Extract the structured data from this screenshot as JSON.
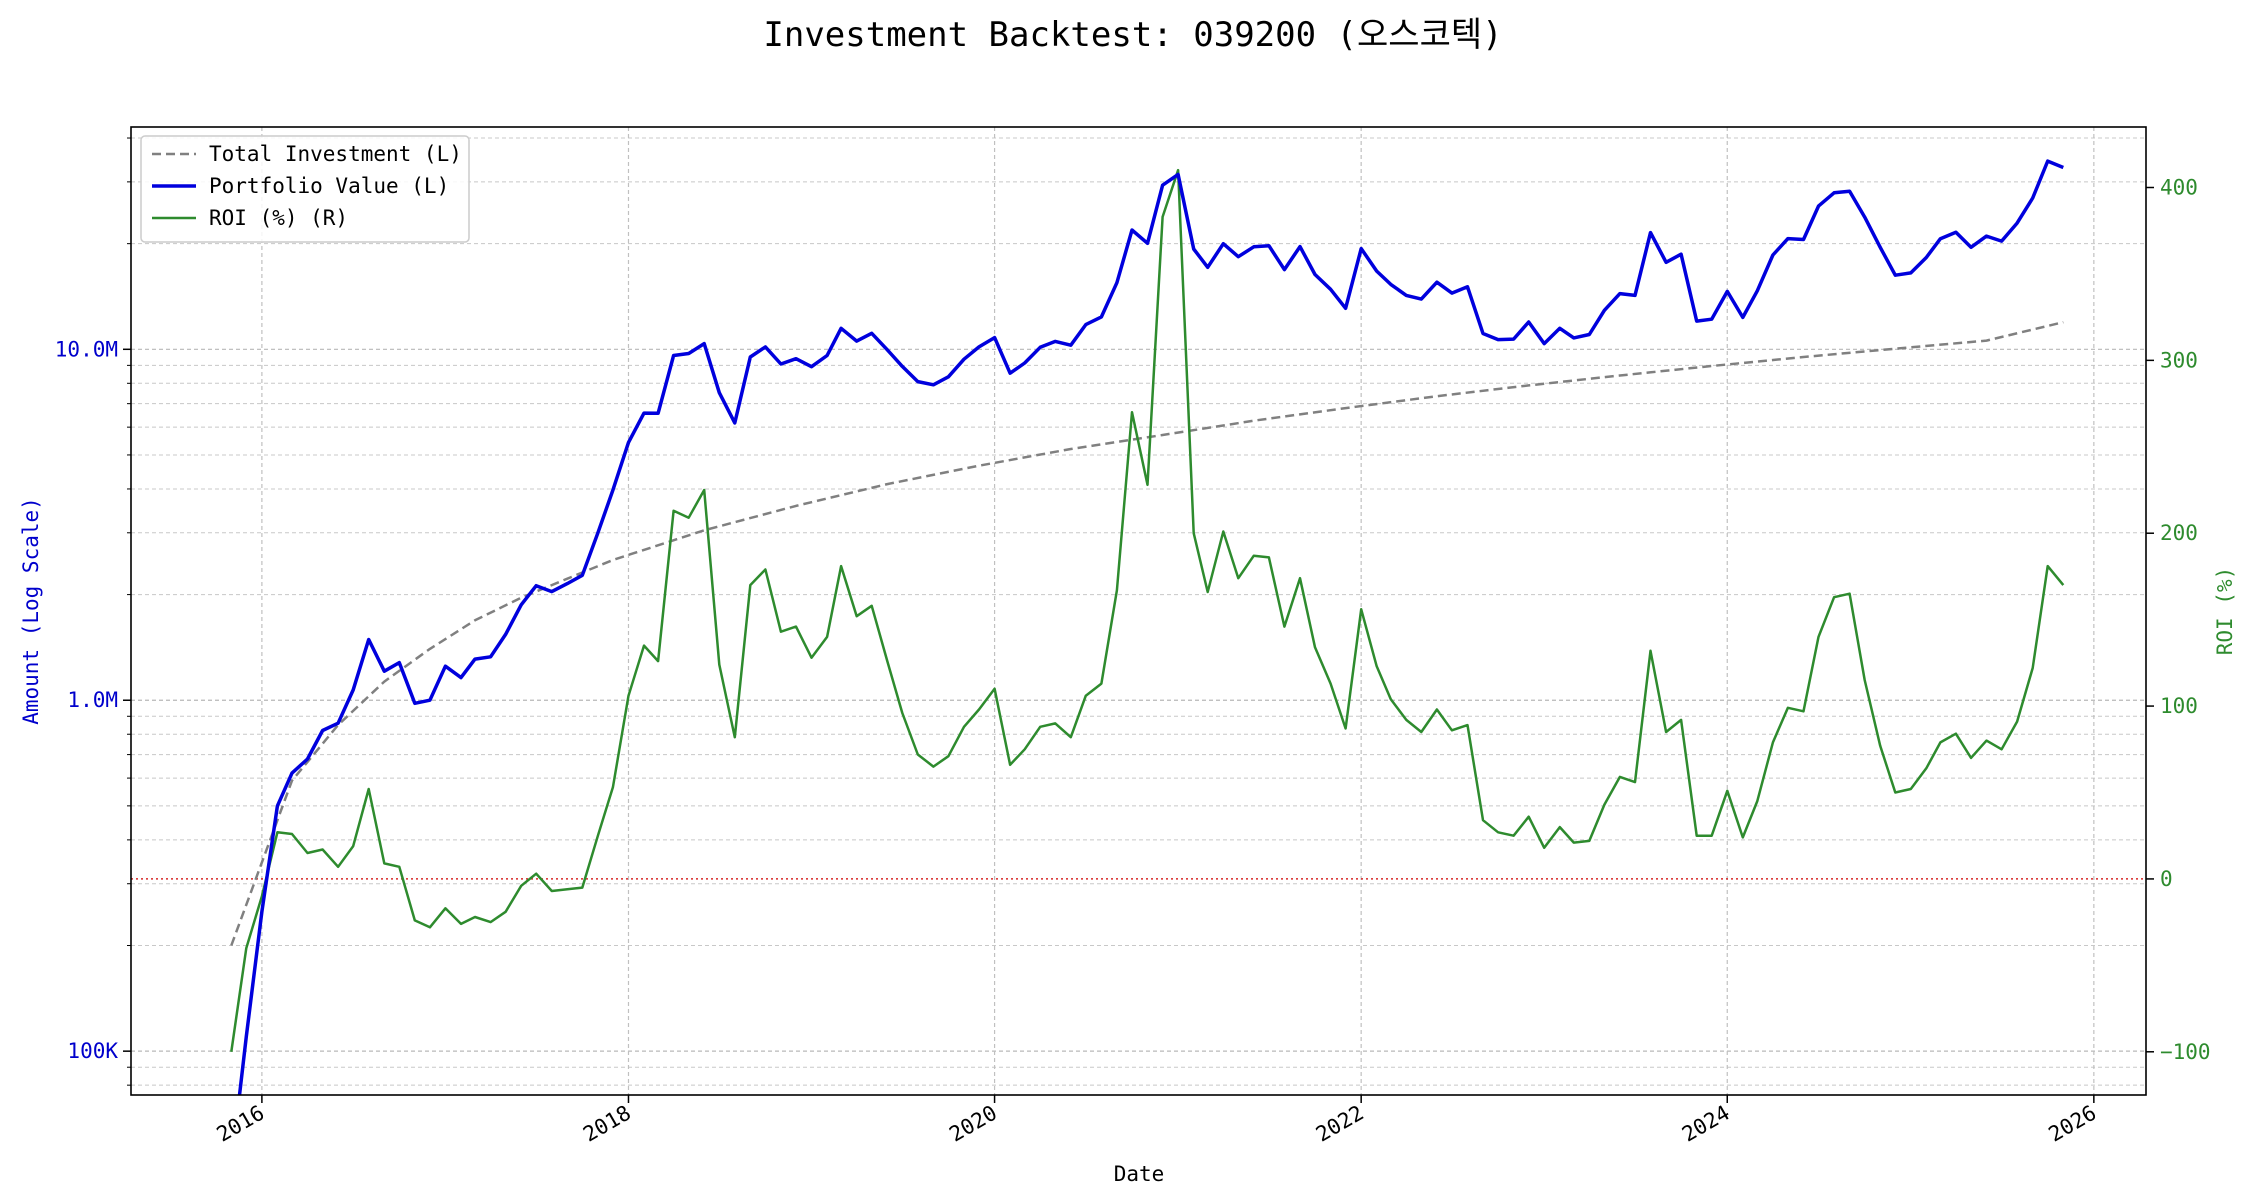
{
  "chart_data": {
    "type": "line",
    "title": "Investment Backtest: 039200 (오스코텍)",
    "xlabel": "Date",
    "ylabel_left": "Amount (Log Scale)",
    "ylabel_right": "ROI (%)",
    "y_left_scale": "log",
    "y_left_range": [
      75000,
      43000000
    ],
    "y_right_range": [
      -125,
      435
    ],
    "x_range": [
      "2015-04-15",
      "2026-04-15"
    ],
    "grid": true,
    "legend_position": "top-left",
    "x_ticks": [
      {
        "value": "2016-01-01",
        "label": "2016"
      },
      {
        "value": "2018-01-01",
        "label": "2018"
      },
      {
        "value": "2020-01-01",
        "label": "2020"
      },
      {
        "value": "2022-01-01",
        "label": "2022"
      },
      {
        "value": "2024-01-01",
        "label": "2024"
      },
      {
        "value": "2026-01-01",
        "label": "2026"
      }
    ],
    "y_left_ticks": [
      {
        "value": 100000,
        "label": "100K"
      },
      {
        "value": 1000000,
        "label": "1.0M"
      },
      {
        "value": 10000000,
        "label": "10.0M"
      }
    ],
    "y_right_ticks": [
      {
        "value": -100,
        "label": "−100"
      },
      {
        "value": 0,
        "label": "0"
      },
      {
        "value": 100,
        "label": "100"
      },
      {
        "value": 200,
        "label": "200"
      },
      {
        "value": 300,
        "label": "300"
      },
      {
        "value": 400,
        "label": "400"
      }
    ],
    "reference_line": {
      "axis": "right",
      "value": 0,
      "color": "#d62728",
      "style": "dotted"
    },
    "colors": {
      "total_investment": "#808080",
      "portfolio_value": "#0000dd",
      "roi": "#2e8b2e",
      "left_axis": "#0000cc",
      "right_axis": "#2e8b2e"
    },
    "series": [
      {
        "name": "Total Investment (L)",
        "axis": "left",
        "style": "dashed",
        "x": [
          "2015-11-01",
          "2016-03-01",
          "2016-06-01",
          "2016-09-01",
          "2016-12-01",
          "2017-03-01",
          "2017-06-01",
          "2017-09-01",
          "2017-12-01",
          "2018-06-01",
          "2018-12-01",
          "2019-06-01",
          "2019-12-01",
          "2020-06-01",
          "2020-12-01",
          "2021-06-01",
          "2021-12-01",
          "2022-06-01",
          "2022-12-01",
          "2023-06-01",
          "2023-12-01",
          "2024-06-01",
          "2024-12-01",
          "2025-06-01",
          "2025-11-01"
        ],
        "values": [
          200000,
          590000,
          850000,
          1130000,
          1400000,
          1690000,
          1960000,
          2220000,
          2510000,
          3050000,
          3580000,
          4130000,
          4660000,
          5200000,
          5700000,
          6260000,
          6800000,
          7350000,
          7890000,
          8420000,
          8960000,
          9510000,
          10040000,
          10590000,
          11950000
        ]
      },
      {
        "name": "Portfolio Value (L)",
        "axis": "left",
        "style": "solid",
        "x": [
          "2015-11-15",
          "2015-12-01",
          "2016-01-01",
          "2016-02-01",
          "2016-03-01",
          "2016-04-01",
          "2016-05-01",
          "2016-06-01",
          "2016-07-01",
          "2016-08-01",
          "2016-09-01",
          "2016-10-01",
          "2016-11-01",
          "2016-12-01",
          "2017-01-01",
          "2017-02-01",
          "2017-03-01",
          "2017-04-01",
          "2017-05-01",
          "2017-06-01",
          "2017-07-01",
          "2017-08-01",
          "2017-09-01",
          "2017-10-01",
          "2017-11-01",
          "2017-12-01",
          "2018-01-01",
          "2018-02-01",
          "2018-03-01",
          "2018-04-01",
          "2018-05-01",
          "2018-06-01",
          "2018-07-01",
          "2018-08-01",
          "2018-09-01",
          "2018-10-01",
          "2018-11-01",
          "2018-12-01",
          "2019-01-01",
          "2019-02-01",
          "2019-03-01",
          "2019-04-01",
          "2019-05-01",
          "2019-06-01",
          "2019-07-01",
          "2019-08-01",
          "2019-09-01",
          "2019-10-01",
          "2019-11-01",
          "2019-12-01",
          "2020-01-01",
          "2020-02-01",
          "2020-03-01",
          "2020-04-01",
          "2020-05-01",
          "2020-06-01",
          "2020-07-01",
          "2020-08-01",
          "2020-09-01",
          "2020-10-01",
          "2020-11-01",
          "2020-12-01",
          "2021-01-01",
          "2021-02-01",
          "2021-03-01",
          "2021-04-01",
          "2021-05-01",
          "2021-06-01",
          "2021-07-01",
          "2021-08-01",
          "2021-09-01",
          "2021-10-01",
          "2021-11-01",
          "2021-12-01",
          "2022-01-01",
          "2022-02-01",
          "2022-03-01",
          "2022-04-01",
          "2022-05-01",
          "2022-06-01",
          "2022-07-01",
          "2022-08-01",
          "2022-09-01",
          "2022-10-01",
          "2022-11-01",
          "2022-12-01",
          "2023-01-01",
          "2023-02-01",
          "2023-03-01",
          "2023-04-01",
          "2023-05-01",
          "2023-06-01",
          "2023-07-01",
          "2023-08-01",
          "2023-09-01",
          "2023-10-01",
          "2023-11-01",
          "2023-12-01",
          "2024-01-01",
          "2024-02-01",
          "2024-03-01",
          "2024-04-01",
          "2024-05-01",
          "2024-06-01",
          "2024-07-01",
          "2024-08-01",
          "2024-09-01",
          "2024-10-01",
          "2024-11-01",
          "2024-12-01",
          "2025-01-01",
          "2025-02-01",
          "2025-03-01",
          "2025-04-01",
          "2025-05-01",
          "2025-06-01",
          "2025-07-01",
          "2025-08-01",
          "2025-09-01",
          "2025-10-01",
          "2025-11-01"
        ],
        "values": [
          70000,
          110000,
          250000,
          500000,
          620000,
          680000,
          820000,
          860000,
          1070000,
          1490000,
          1210000,
          1280000,
          980000,
          1000000,
          1250000,
          1160000,
          1310000,
          1330000,
          1540000,
          1870000,
          2120000,
          2040000,
          2150000,
          2270000,
          3000000,
          3970000,
          5430000,
          6580000,
          6570000,
          9600000,
          9730000,
          10380000,
          7520000,
          6170000,
          9510000,
          10160000,
          9080000,
          9400000,
          8920000,
          9600000,
          11480000,
          10550000,
          11110000,
          9970000,
          8940000,
          8090000,
          7920000,
          8350000,
          9370000,
          10160000,
          10800000,
          8550000,
          9140000,
          10130000,
          10530000,
          10270000,
          11760000,
          12370000,
          15480000,
          21870000,
          20050000,
          29360000,
          31500000,
          19310000,
          17130000,
          19990000,
          18360000,
          19590000,
          19740000,
          16870000,
          19620000,
          16340000,
          14820000,
          13090000,
          19360000,
          16700000,
          15310000,
          14240000,
          13900000,
          15530000,
          14460000,
          15070000,
          11090000,
          10660000,
          10690000,
          11960000,
          10380000,
          11480000,
          10780000,
          11020000,
          12920000,
          14410000,
          14240000,
          21510000,
          17700000,
          18660000,
          12030000,
          12180000,
          14620000,
          12330000,
          14680000,
          18570000,
          20670000,
          20550000,
          25590000,
          27930000,
          28220000,
          23810000,
          19530000,
          16260000,
          16510000,
          18260000,
          20660000,
          21550000,
          19530000,
          21020000,
          20340000,
          22890000,
          26990000,
          34380000,
          32970000
        ]
      },
      {
        "name": "ROI (%) (R)",
        "axis": "right",
        "style": "solid",
        "x": [
          "2015-11-01",
          "2015-12-01",
          "2016-01-01",
          "2016-02-01",
          "2016-03-01",
          "2016-04-01",
          "2016-05-01",
          "2016-06-01",
          "2016-07-01",
          "2016-08-01",
          "2016-09-01",
          "2016-10-01",
          "2016-11-01",
          "2016-12-01",
          "2017-01-01",
          "2017-02-01",
          "2017-03-01",
          "2017-04-01",
          "2017-05-01",
          "2017-06-01",
          "2017-07-01",
          "2017-08-01",
          "2017-09-01",
          "2017-10-01",
          "2017-11-01",
          "2017-12-01",
          "2018-01-01",
          "2018-02-01",
          "2018-03-01",
          "2018-04-01",
          "2018-05-01",
          "2018-06-01",
          "2018-07-01",
          "2018-08-01",
          "2018-09-01",
          "2018-10-01",
          "2018-11-01",
          "2018-12-01",
          "2019-01-01",
          "2019-02-01",
          "2019-03-01",
          "2019-04-01",
          "2019-05-01",
          "2019-06-01",
          "2019-07-01",
          "2019-08-01",
          "2019-09-01",
          "2019-10-01",
          "2019-11-01",
          "2019-12-01",
          "2020-01-01",
          "2020-02-01",
          "2020-03-01",
          "2020-04-01",
          "2020-05-01",
          "2020-06-01",
          "2020-07-01",
          "2020-08-01",
          "2020-09-01",
          "2020-10-01",
          "2020-11-01",
          "2020-12-01",
          "2021-01-01",
          "2021-02-01",
          "2021-03-01",
          "2021-04-01",
          "2021-05-01",
          "2021-06-01",
          "2021-07-01",
          "2021-08-01",
          "2021-09-01",
          "2021-10-01",
          "2021-11-01",
          "2021-12-01",
          "2022-01-01",
          "2022-02-01",
          "2022-03-01",
          "2022-04-01",
          "2022-05-01",
          "2022-06-01",
          "2022-07-01",
          "2022-08-01",
          "2022-09-01",
          "2022-10-01",
          "2022-11-01",
          "2022-12-01",
          "2023-01-01",
          "2023-02-01",
          "2023-03-01",
          "2023-04-01",
          "2023-05-01",
          "2023-06-01",
          "2023-07-01",
          "2023-08-01",
          "2023-09-01",
          "2023-10-01",
          "2023-11-01",
          "2023-12-01",
          "2024-01-01",
          "2024-02-01",
          "2024-03-01",
          "2024-04-01",
          "2024-05-01",
          "2024-06-01",
          "2024-07-01",
          "2024-08-01",
          "2024-09-01",
          "2024-10-01",
          "2024-11-01",
          "2024-12-01",
          "2025-01-01",
          "2025-02-01",
          "2025-03-01",
          "2025-04-01",
          "2025-05-01",
          "2025-06-01",
          "2025-07-01",
          "2025-08-01",
          "2025-09-01",
          "2025-10-01",
          "2025-11-01"
        ],
        "values": [
          -100,
          -40,
          -10,
          27,
          26,
          15,
          17,
          7,
          19,
          52,
          9,
          7,
          -24,
          -28,
          -17,
          -26,
          -22,
          -25,
          -19,
          -4,
          3,
          -7,
          -6,
          -5,
          25,
          53,
          106,
          135,
          126,
          213,
          209,
          225,
          124,
          82,
          170,
          179,
          143,
          146,
          128,
          140,
          181,
          152,
          158,
          126,
          96,
          72,
          65,
          71,
          88,
          98,
          110,
          66,
          75,
          88,
          90,
          82,
          106,
          113,
          167,
          270,
          228,
          383,
          410,
          200,
          166,
          201,
          174,
          187,
          186,
          146,
          174,
          134,
          113,
          87,
          156,
          123,
          104,
          92,
          85,
          98,
          86,
          89,
          34,
          27,
          25,
          36,
          18,
          30,
          21,
          22,
          43,
          59,
          56,
          132,
          85,
          92,
          25,
          25,
          51,
          24,
          45,
          79,
          99,
          97,
          140,
          163,
          165,
          115,
          77,
          50,
          52,
          64,
          79,
          84,
          70,
          80,
          75,
          91,
          122,
          181,
          170
        ]
      }
    ]
  }
}
